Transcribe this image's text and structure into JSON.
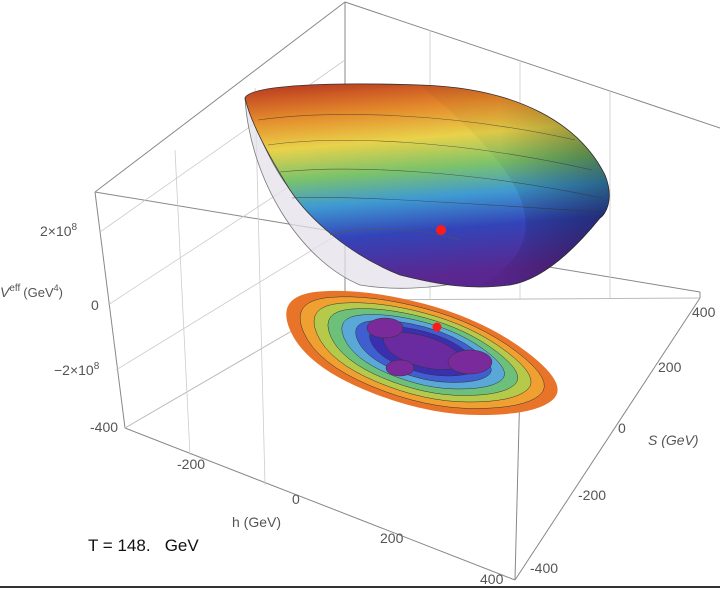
{
  "chart_data": {
    "type": "surface3d",
    "title": "",
    "annotation": "T = 148.   GeV",
    "xlabel": "h (GeV)",
    "ylabel": "S (GeV)",
    "zlabel_main": "V",
    "zlabel_sup": "eff",
    "zlabel_unit": "(GeV",
    "zlabel_unit_sup": "4",
    "zlabel_unit_close": ")",
    "xlim": [
      -400,
      400
    ],
    "ylim": [
      -400,
      400
    ],
    "zlim": [
      -300000000,
      300000000
    ],
    "x_ticks": [
      "-400",
      "-200",
      "0",
      "200",
      "400"
    ],
    "y_ticks": [
      "-400",
      "-200",
      "0",
      "200",
      "400"
    ],
    "z_ticks": [
      {
        "value": 200000000,
        "mantissa": "2×10",
        "exp": "8"
      },
      {
        "value": 0,
        "mantissa": "0",
        "exp": ""
      },
      {
        "value": -200000000,
        "mantissa": "−2×10",
        "exp": "8"
      }
    ],
    "minimum_marker": {
      "h": 0,
      "S": 150,
      "color": "#ff0000"
    },
    "contour_colors": [
      "#e8742a",
      "#f0a030",
      "#b5c94a",
      "#6cc07a",
      "#5aa8d8",
      "#3f5fd0",
      "#3a2fb0",
      "#6a2aa0"
    ],
    "surface_colormap": [
      "#c0392b",
      "#e67e22",
      "#f1c40f",
      "#7dc36b",
      "#4aa6d6",
      "#3b4cc0",
      "#5b2a9a"
    ]
  }
}
